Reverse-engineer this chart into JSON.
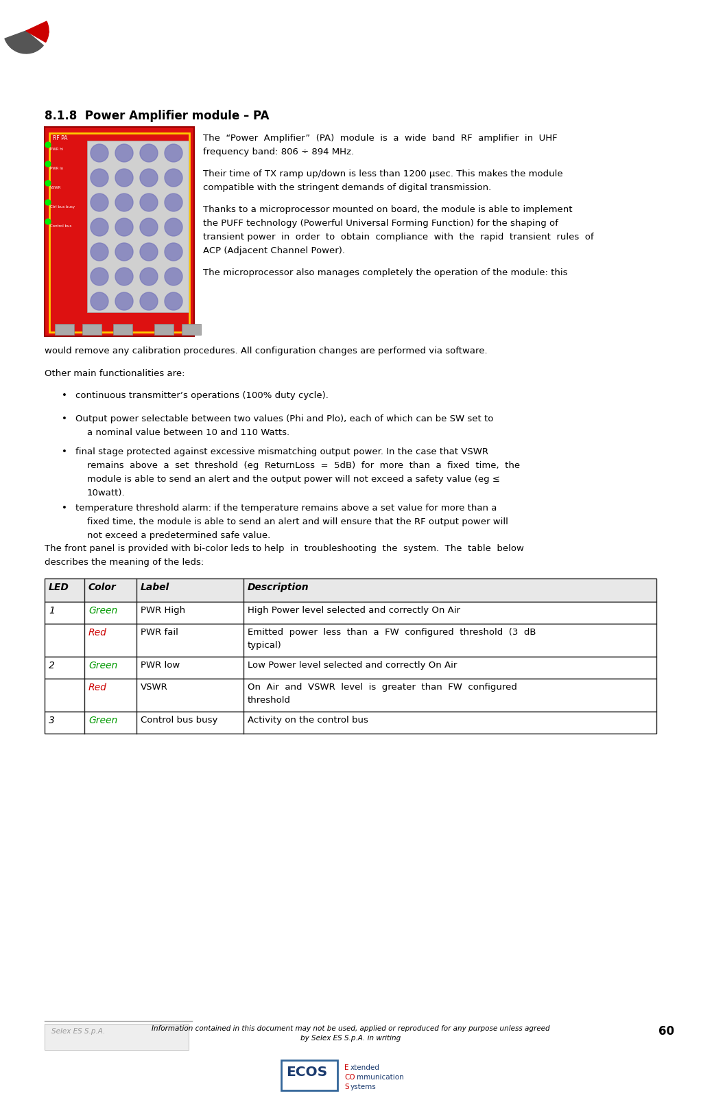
{
  "bg_color": "#ffffff",
  "section_title": "8.1.8  Power Amplifier module – PA",
  "para1_line1": "The  “Power  Amplifier”  (PA)  module  is  a  wide  band  RF  amplifier  in  UHF",
  "para1_line2": "frequency band: 806 ÷ 894 MHz.",
  "para2_line1": "Their time of TX ramp up/down is less than 1200 μsec. This makes the module",
  "para2_line2": "compatible with the stringent demands of digital transmission.",
  "para3_line1": "Thanks to a microprocessor mounted on board, the module is able to implement",
  "para3_line2": "the PUFF technology (Powerful Universal Forming Function) for the shaping of",
  "para3_line3": "transient power  in  order  to  obtain  compliance  with  the  rapid  transient  rules  of",
  "para3_line4": "ACP (Adjacent Channel Power).",
  "para4_line1": "The microprocessor also manages completely the operation of the module: this",
  "para5": "would remove any calibration procedures. All configuration changes are performed via software.",
  "other_title": "Other main functionalities are:",
  "bullet1": "continuous transmitter’s operations (100% duty cycle).",
  "bullet2a": "Output power selectable between two values (Phi and Plo), each of which can be SW set to",
  "bullet2b": "a nominal value between 10 and 110 Watts.",
  "bullet3a": "final stage protected against excessive mismatching output power. In the case that VSWR",
  "bullet3b": "remains  above  a  set  threshold  (eg  ReturnLoss  =  5dB)  for  more  than  a  fixed  time,  the",
  "bullet3c": "module is able to send an alert and the output power will not exceed a safety value (eg ≤",
  "bullet3d": "10watt).",
  "bullet4a": "temperature threshold alarm: if the temperature remains above a set value for more than a",
  "bullet4b": "fixed time, the module is able to send an alert and will ensure that the RF output power will",
  "bullet4c": "not exceed a predetermined safe value.",
  "front_panel_line1": "The front panel is provided with bi-color leds to help  in  troubleshooting  the  system.  The  table  below",
  "front_panel_line2": "describes the meaning of the leds:",
  "table_headers": [
    "LED",
    "Color",
    "Label",
    "Description"
  ],
  "table_rows": [
    {
      "led": "1",
      "color_text": "Green",
      "color_hex": "#009900",
      "label": "PWR High",
      "desc_lines": [
        "High Power level selected and correctly On Air"
      ]
    },
    {
      "led": "",
      "color_text": "Red",
      "color_hex": "#cc0000",
      "label": "PWR fail",
      "desc_lines": [
        "Emitted  power  less  than  a  FW  configured  threshold  (3  dB",
        "typical)"
      ]
    },
    {
      "led": "2",
      "color_text": "Green",
      "color_hex": "#009900",
      "label": "PWR low",
      "desc_lines": [
        "Low Power level selected and correctly On Air"
      ]
    },
    {
      "led": "",
      "color_text": "Red",
      "color_hex": "#cc0000",
      "label": "VSWR",
      "desc_lines": [
        "On  Air  and  VSWR  level  is  greater  than  FW  configured",
        "threshold"
      ]
    },
    {
      "led": "3",
      "color_text": "Green",
      "color_hex": "#009900",
      "label": "Control bus busy",
      "desc_lines": [
        "Activity on the control bus"
      ]
    }
  ],
  "footer_company": "Selex ES S.p.A.",
  "footer_notice_line1": "Information contained in this document may not be used, applied or reproduced for any purpose unless agreed",
  "footer_notice_line2": "by Selex ES S.p.A. in writing",
  "footer_page": "60",
  "green_color": "#009900",
  "red_color": "#cc0000"
}
